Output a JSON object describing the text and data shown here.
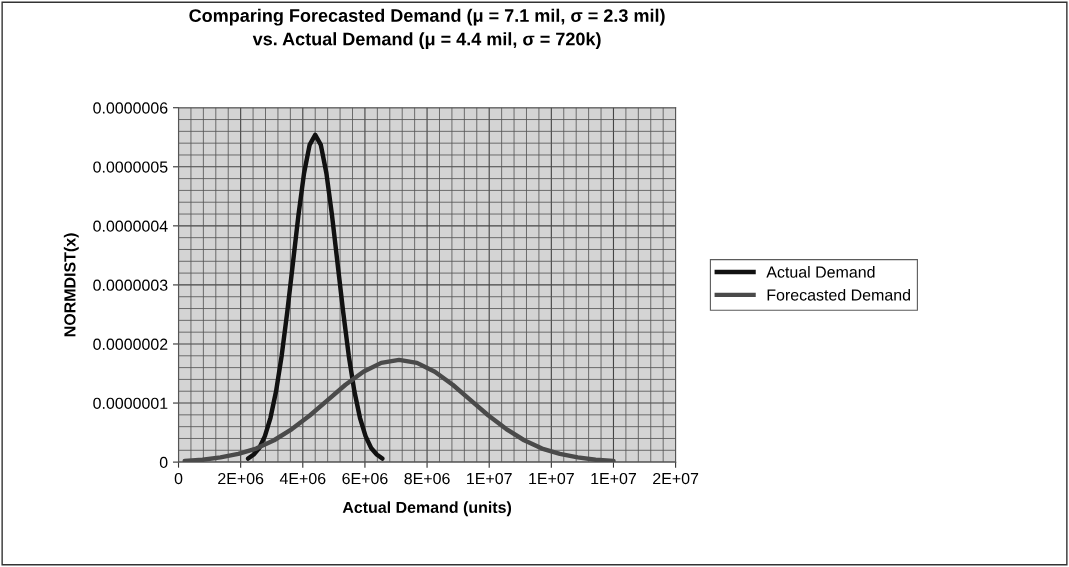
{
  "chart_data": {
    "type": "line",
    "title": "Comparing Forecasted Demand (μ = 7.1 mil, σ = 2.3 mil)\nvs. Actual Demand (μ = 4.4 mil, σ = 720k)",
    "xlabel": "Actual Demand (units)",
    "ylabel": "NORMDIST(x)",
    "series": [
      {
        "name": "Actual Demand",
        "color": "#111111",
        "x": [
          2240000,
          2420000,
          2600000,
          2780000,
          2960000,
          3140000,
          3320000,
          3500000,
          3680000,
          3860000,
          4040000,
          4220000,
          4400000,
          4580000,
          4760000,
          4940000,
          5120000,
          5300000,
          5480000,
          5660000,
          5840000,
          6020000,
          6200000,
          6380000,
          6560000
        ],
        "values": [
          6e-09,
          1.3e-08,
          2.4e-08,
          4.4e-08,
          7.5e-08,
          1.2e-07,
          1.8e-07,
          2.54e-07,
          3.36e-07,
          4.18e-07,
          4.89e-07,
          5.37e-07,
          5.54e-07,
          5.37e-07,
          4.89e-07,
          4.18e-07,
          3.36e-07,
          2.54e-07,
          1.8e-07,
          1.2e-07,
          7.5e-08,
          4.4e-08,
          2.4e-08,
          1.3e-08,
          6e-09
        ]
      },
      {
        "name": "Forecasted Demand",
        "color": "#4a4a4a",
        "x": [
          200000,
          775000,
          1350000,
          1925000,
          2500000,
          3075000,
          3650000,
          4225000,
          4800000,
          5375000,
          5950000,
          6525000,
          7100000,
          7675000,
          8250000,
          8825000,
          9400000,
          9975000,
          10550000,
          11125000,
          11700000,
          12275000,
          12850000,
          13425000,
          14000000
        ],
        "values": [
          2e-09,
          4e-09,
          8e-09,
          1.4e-08,
          2.3e-08,
          3.7e-08,
          5.6e-08,
          7.9e-08,
          1.05e-07,
          1.31e-07,
          1.53e-07,
          1.68e-07,
          1.73e-07,
          1.68e-07,
          1.53e-07,
          1.31e-07,
          1.05e-07,
          7.9e-08,
          5.6e-08,
          3.7e-08,
          2.3e-08,
          1.4e-08,
          8e-09,
          4e-09,
          2e-09
        ]
      }
    ],
    "xlim": [
      0,
      16000000
    ],
    "xticks": [
      0,
      {
        "value": 2000000,
        "label": "2E+06"
      },
      {
        "value": 4000000,
        "label": "4E+06"
      },
      {
        "value": 6000000,
        "label": "6E+06"
      },
      {
        "value": 8000000,
        "label": "8E+06"
      },
      {
        "value": 10000000,
        "label": "1E+07"
      },
      {
        "value": 12000000,
        "label": "1E+07"
      },
      {
        "value": 14000000,
        "label": "1E+07"
      },
      {
        "value": 16000000,
        "label": "2E+07"
      }
    ],
    "ylim": [
      0,
      6e-07
    ],
    "yticks": [
      0,
      {
        "value": 1e-07,
        "label": "0.0000001"
      },
      {
        "value": 2e-07,
        "label": "0.0000002"
      },
      {
        "value": 3e-07,
        "label": "0.0000003"
      },
      {
        "value": 4e-07,
        "label": "0.0000004"
      },
      {
        "value": 5e-07,
        "label": "0.0000005"
      },
      {
        "value": 6e-07,
        "label": "0.0000006"
      }
    ],
    "grid": true,
    "legend": "right",
    "marker": "none",
    "line_style": "solid"
  }
}
